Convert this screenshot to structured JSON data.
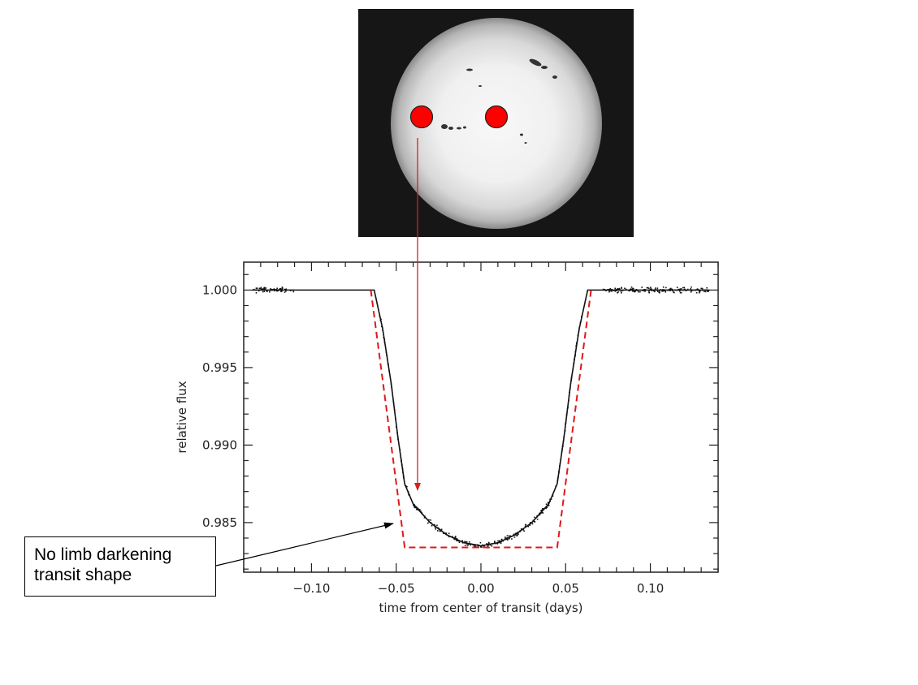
{
  "colors": {
    "planet": "#ff0000",
    "planet_path": "#d42020",
    "model_line": "#e01818",
    "data": "#111111"
  },
  "sun_image": {
    "content": "solar disk photograph with sunspots and two transiting planet positions",
    "planet_positions": 2
  },
  "annotation": {
    "line1": "No limb darkening",
    "line2": "transit shape"
  },
  "chart_data": {
    "type": "scatter",
    "title": "",
    "xlabel": "time from center of transit (days)",
    "ylabel": "relative flux",
    "xlim": [
      -0.14,
      0.14
    ],
    "ylim": [
      0.9818,
      1.0018
    ],
    "xticks": [
      -0.1,
      -0.05,
      0.0,
      0.05,
      0.1
    ],
    "xtick_labels": [
      "−0.10",
      "−0.05",
      "0.00",
      "0.05",
      "0.10"
    ],
    "yticks": [
      0.985,
      0.99,
      0.995,
      1.0
    ],
    "ytick_labels": [
      "0.985",
      "0.990",
      "0.995",
      "1.000"
    ],
    "grid": false,
    "series": [
      {
        "kind": "observed points",
        "x_range": [
          -0.135,
          0.135
        ],
        "out_of_transit_flux": 1.0,
        "minimum_flux": 0.9835
      },
      {
        "kind": "limb-darkened fit",
        "x": [
          -0.135,
          -0.063,
          -0.058,
          -0.053,
          -0.049,
          -0.045,
          -0.04,
          -0.03,
          -0.02,
          -0.01,
          0.0,
          0.01,
          0.02,
          0.03,
          0.04,
          0.045,
          0.049,
          0.053,
          0.058,
          0.063,
          0.135
        ],
        "y": [
          1.0,
          1.0,
          0.9975,
          0.994,
          0.9905,
          0.9875,
          0.9862,
          0.985,
          0.9842,
          0.9837,
          0.9835,
          0.9837,
          0.9842,
          0.985,
          0.9862,
          0.9875,
          0.9905,
          0.994,
          0.9975,
          1.0,
          1.0
        ]
      },
      {
        "kind": "no limb darkening model",
        "x": [
          -0.065,
          -0.045,
          0.045,
          0.065
        ],
        "y": [
          1.0,
          0.9834,
          0.9834,
          1.0
        ]
      }
    ]
  }
}
